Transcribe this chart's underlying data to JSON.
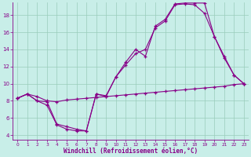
{
  "xlabel": "Windchill (Refroidissement éolien,°C)",
  "background_color": "#c8eee8",
  "line_color": "#880088",
  "grid_color": "#99ccbb",
  "xlim": [
    -0.5,
    23.5
  ],
  "ylim": [
    3.5,
    19.5
  ],
  "xticks": [
    0,
    1,
    2,
    3,
    4,
    5,
    6,
    7,
    8,
    9,
    10,
    11,
    12,
    13,
    14,
    15,
    16,
    17,
    18,
    19,
    20,
    21,
    22,
    23
  ],
  "yticks": [
    4,
    6,
    8,
    10,
    12,
    14,
    16,
    18
  ],
  "line1_x": [
    0,
    1,
    2,
    3,
    4,
    5,
    6,
    7,
    8,
    9,
    10,
    11,
    12,
    13,
    14,
    15,
    16,
    17,
    18,
    19,
    20,
    21,
    22,
    23
  ],
  "line1_y": [
    8.3,
    8.8,
    8.5,
    8.0,
    7.9,
    8.1,
    8.2,
    8.3,
    8.4,
    8.5,
    8.6,
    8.7,
    8.8,
    8.9,
    9.0,
    9.1,
    9.2,
    9.3,
    9.4,
    9.5,
    9.6,
    9.7,
    9.9,
    10.0
  ],
  "line2_x": [
    0,
    1,
    2,
    3,
    4,
    5,
    6,
    7,
    8,
    9,
    10,
    11,
    12,
    13,
    14,
    15,
    16,
    17,
    18,
    19,
    20,
    21,
    22,
    23
  ],
  "line2_y": [
    8.3,
    8.8,
    8.0,
    7.9,
    5.3,
    5.0,
    4.7,
    4.5,
    8.8,
    8.5,
    10.8,
    12.2,
    13.5,
    14.0,
    16.5,
    17.3,
    19.2,
    19.3,
    19.2,
    18.2,
    15.5,
    13.0,
    11.0,
    10.0
  ],
  "line3_x": [
    0,
    1,
    2,
    3,
    4,
    5,
    6,
    7,
    8,
    9,
    10,
    11,
    12,
    13,
    14,
    15,
    16,
    17,
    18,
    19,
    20,
    21,
    22,
    23
  ],
  "line3_y": [
    8.3,
    8.8,
    8.0,
    7.5,
    5.2,
    4.7,
    4.5,
    4.5,
    8.8,
    8.6,
    10.8,
    12.5,
    14.0,
    13.2,
    16.7,
    17.5,
    19.3,
    19.4,
    19.4,
    19.4,
    15.5,
    13.2,
    11.0,
    10.0
  ]
}
